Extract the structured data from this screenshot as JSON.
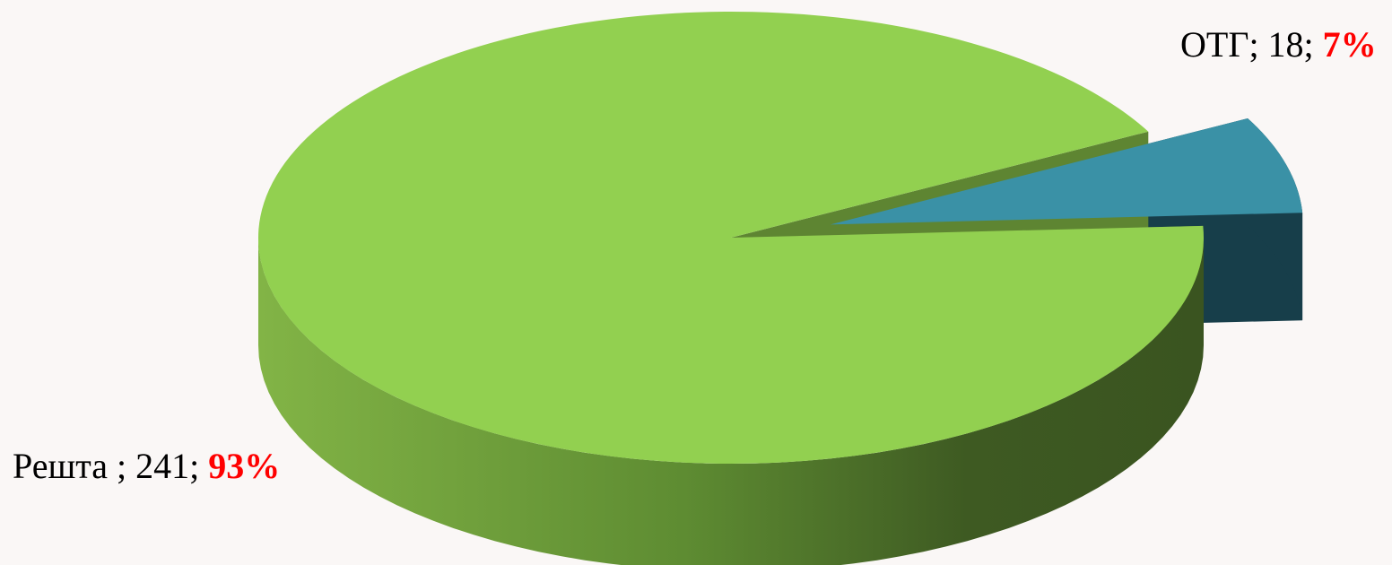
{
  "chart_data": {
    "type": "pie",
    "style": "3d-exploded",
    "title": "",
    "slices": [
      {
        "category": "ОТГ",
        "value": 18,
        "percent": 7,
        "value_label": "ОТГ; 18; ",
        "percent_label": "7%",
        "color": "#3A91A6",
        "side_color": "#173E4A"
      },
      {
        "category": "Решта ",
        "value": 241,
        "percent": 93,
        "value_label": "Решта ; 241; ",
        "percent_label": "93%",
        "color": "#92D050",
        "side_color": "#4F6B2A"
      }
    ],
    "legend": "none",
    "percent_label_color": "#FF0000"
  }
}
